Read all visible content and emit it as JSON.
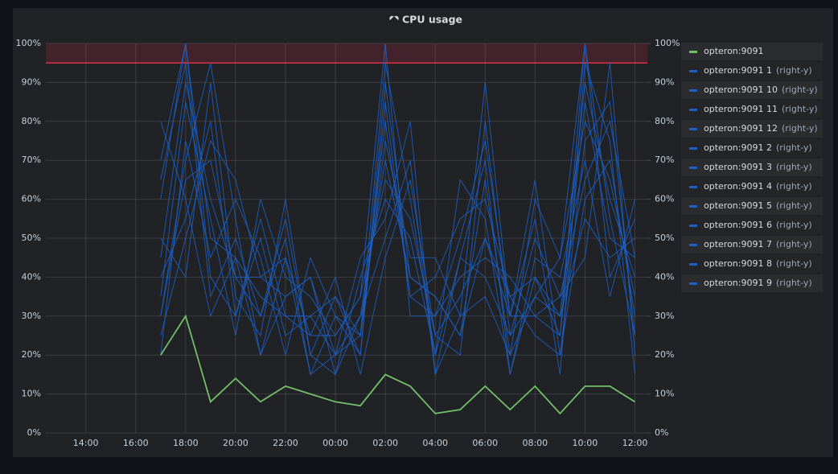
{
  "chart_data": {
    "type": "line",
    "title": "CPU usage",
    "x": [
      17,
      18,
      19,
      20,
      21,
      22,
      23,
      24,
      25,
      26,
      27,
      28,
      29,
      30,
      31,
      32,
      33,
      34,
      35,
      36
    ],
    "xlim": [
      12.4,
      36.5
    ],
    "xticks": [
      {
        "value": 14,
        "label": "14:00"
      },
      {
        "value": 16,
        "label": "16:00"
      },
      {
        "value": 18,
        "label": "18:00"
      },
      {
        "value": 20,
        "label": "20:00"
      },
      {
        "value": 22,
        "label": "22:00"
      },
      {
        "value": 24,
        "label": "00:00"
      },
      {
        "value": 26,
        "label": "02:00"
      },
      {
        "value": 28,
        "label": "04:00"
      },
      {
        "value": 30,
        "label": "06:00"
      },
      {
        "value": 32,
        "label": "08:00"
      },
      {
        "value": 34,
        "label": "10:00"
      },
      {
        "value": 36,
        "label": "12:00"
      }
    ],
    "ylim": [
      0,
      100
    ],
    "yticks": [
      {
        "value": 0,
        "label": "0%"
      },
      {
        "value": 10,
        "label": "10%"
      },
      {
        "value": 20,
        "label": "20%"
      },
      {
        "value": 30,
        "label": "30%"
      },
      {
        "value": 40,
        "label": "40%"
      },
      {
        "value": 50,
        "label": "50%"
      },
      {
        "value": 60,
        "label": "60%"
      },
      {
        "value": 70,
        "label": "70%"
      },
      {
        "value": 80,
        "label": "80%"
      },
      {
        "value": 90,
        "label": "90%"
      },
      {
        "value": 100,
        "label": "100%"
      }
    ],
    "y2lim": [
      0,
      100
    ],
    "y2ticks": [
      {
        "value": 0,
        "label": "0%"
      },
      {
        "value": 10,
        "label": "10%"
      },
      {
        "value": 20,
        "label": "20%"
      },
      {
        "value": 30,
        "label": "30%"
      },
      {
        "value": 40,
        "label": "40%"
      },
      {
        "value": 50,
        "label": "50%"
      },
      {
        "value": 60,
        "label": "60%"
      },
      {
        "value": 70,
        "label": "70%"
      },
      {
        "value": 80,
        "label": "80%"
      },
      {
        "value": 90,
        "label": "90%"
      },
      {
        "value": 100,
        "label": "100%"
      }
    ],
    "grid": true,
    "threshold": 95,
    "threshold_color": "#e02f44",
    "legend_suffix": "(right-y)",
    "series": [
      {
        "name": "opteron:9091",
        "color": "#73bf69",
        "values": [
          20,
          30,
          8,
          14,
          8,
          12,
          10,
          8,
          7,
          15,
          12,
          5,
          6,
          12,
          6,
          12,
          5,
          12,
          12,
          8
        ]
      },
      {
        "name": "opteron:9091 1",
        "color": "#1f60c4",
        "axis": "y2",
        "values": [
          45,
          90,
          60,
          40,
          30,
          55,
          20,
          35,
          25,
          95,
          60,
          20,
          45,
          70,
          15,
          40,
          30,
          90,
          60,
          40
        ]
      },
      {
        "name": "opteron:9091 10",
        "color": "#1f60c4",
        "axis": "y2",
        "values": [
          30,
          70,
          95,
          55,
          20,
          35,
          40,
          15,
          30,
          70,
          40,
          35,
          25,
          50,
          30,
          65,
          20,
          75,
          85,
          25
        ]
      },
      {
        "name": "opteron:9091 11",
        "color": "#1f60c4",
        "axis": "y2",
        "values": [
          60,
          100,
          40,
          30,
          50,
          25,
          30,
          20,
          45,
          55,
          80,
          15,
          30,
          35,
          20,
          35,
          45,
          100,
          40,
          55
        ]
      },
      {
        "name": "opteron:9091 12",
        "color": "#1f60c4",
        "axis": "y2",
        "values": [
          25,
          50,
          75,
          65,
          40,
          45,
          15,
          30,
          20,
          85,
          35,
          40,
          55,
          60,
          35,
          25,
          20,
          60,
          70,
          30
        ]
      },
      {
        "name": "opteron:9091 2",
        "color": "#1f60c4",
        "axis": "y2",
        "values": [
          80,
          60,
          30,
          45,
          35,
          30,
          25,
          40,
          15,
          45,
          65,
          25,
          20,
          80,
          25,
          50,
          35,
          45,
          95,
          20
        ]
      },
      {
        "name": "opteron:9091 3",
        "color": "#1f60c4",
        "axis": "y2",
        "values": [
          35,
          85,
          55,
          25,
          60,
          40,
          35,
          25,
          35,
          100,
          30,
          30,
          40,
          45,
          40,
          30,
          25,
          85,
          50,
          45
        ]
      },
      {
        "name": "opteron:9091 4",
        "color": "#1f60c4",
        "axis": "y2",
        "values": [
          50,
          40,
          90,
          35,
          25,
          60,
          20,
          15,
          40,
          60,
          50,
          20,
          65,
          55,
          15,
          45,
          40,
          70,
          35,
          60
        ]
      },
      {
        "name": "opteron:9091 5",
        "color": "#1f60c4",
        "axis": "y2",
        "values": [
          20,
          75,
          45,
          60,
          45,
          20,
          45,
          30,
          25,
          75,
          45,
          45,
          30,
          90,
          30,
          55,
          15,
          95,
          75,
          15
        ]
      },
      {
        "name": "opteron:9091 6",
        "color": "#1f60c4",
        "axis": "y2",
        "values": [
          65,
          95,
          35,
          50,
          30,
          50,
          15,
          20,
          30,
          50,
          70,
          15,
          45,
          40,
          25,
          35,
          30,
          55,
          45,
          50
        ]
      },
      {
        "name": "opteron:9091 7",
        "color": "#1f60c4",
        "axis": "y2",
        "values": [
          40,
          55,
          80,
          30,
          55,
          30,
          30,
          35,
          20,
          90,
          40,
          35,
          25,
          65,
          20,
          60,
          45,
          80,
          65,
          35
        ]
      },
      {
        "name": "opteron:9091 8",
        "color": "#1f60c4",
        "axis": "y2",
        "values": [
          70,
          100,
          50,
          45,
          20,
          45,
          25,
          25,
          35,
          65,
          55,
          25,
          35,
          50,
          35,
          40,
          25,
          100,
          55,
          25
        ]
      },
      {
        "name": "opteron:9091 9",
        "color": "#1f60c4",
        "axis": "y2",
        "values": [
          30,
          65,
          70,
          40,
          40,
          35,
          40,
          20,
          25,
          80,
          35,
          30,
          50,
          75,
          30,
          30,
          35,
          65,
          80,
          45
        ]
      }
    ]
  }
}
